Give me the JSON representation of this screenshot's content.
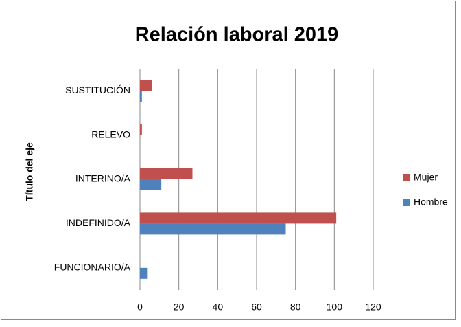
{
  "chart_data": {
    "type": "bar",
    "orientation": "horizontal",
    "title": "Relación laboral 2019",
    "y_axis_title": "Título del eje",
    "categories": [
      "FUNCIONARIO/A",
      "INDEFINIDO/A",
      "INTERINO/A",
      "RELEVO",
      "SUSTITUCIÓN"
    ],
    "series": [
      {
        "name": "Hombre",
        "color": "#4f81bd",
        "values": [
          4,
          75,
          11,
          0,
          1
        ]
      },
      {
        "name": "Mujer",
        "color": "#c0504d",
        "values": [
          0,
          101,
          27,
          1,
          6
        ]
      }
    ],
    "xlim": [
      0,
      120
    ],
    "xticks": [
      0,
      20,
      40,
      60,
      80,
      100,
      120
    ],
    "grid": true,
    "legend": "right"
  }
}
